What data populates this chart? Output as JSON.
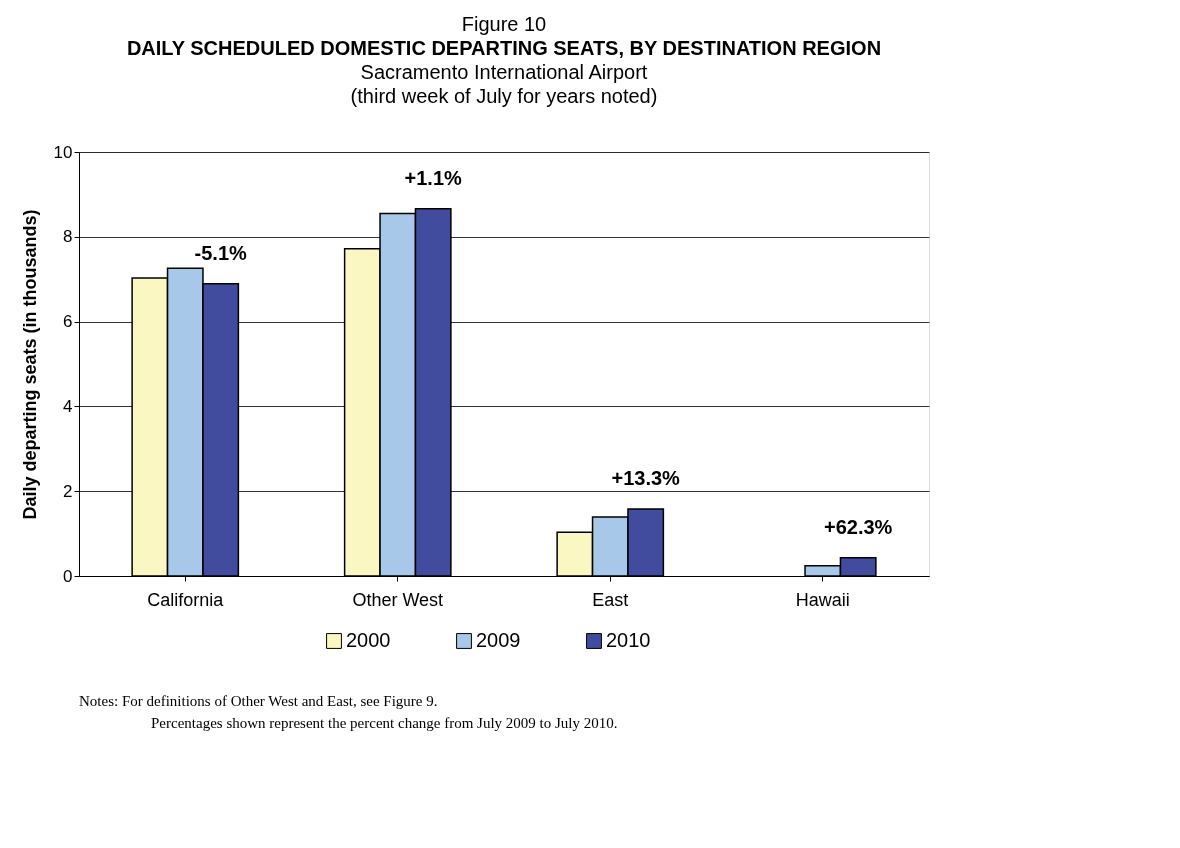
{
  "chart_data": {
    "type": "bar",
    "title": "DAILY SCHEDULED DOMESTIC DEPARTING SEATS, BY DESTINATION REGION",
    "subtitle": "Sacramento International Airport\n(third week of July for years noted)",
    "ylabel": "Daily departing seats (in thousands)",
    "categories": [
      "California",
      "Other West",
      "East",
      "Hawaii"
    ],
    "series": [
      {
        "name": "2000",
        "color": "#faf7c3",
        "values": [
          7.03,
          7.72,
          1.03,
          null
        ]
      },
      {
        "name": "2009",
        "color": "#a7c8e9",
        "values": [
          7.26,
          8.55,
          1.39,
          0.24
        ]
      },
      {
        "name": "2010",
        "color": "#424c9e",
        "values": [
          6.89,
          8.66,
          1.58,
          0.43
        ]
      }
    ],
    "ylim": [
      0,
      10
    ],
    "yticks": [
      0,
      2,
      4,
      6,
      8,
      10
    ],
    "grid": "y",
    "legend": "bottom",
    "annotations": [
      "Figure 10",
      "-5.1%",
      "+1.1%",
      "+13.3%",
      "+62.3%",
      "Notes:      For definitions of Other West and East, see Figure 9.",
      "Percentages shown represent the percent change from July 2009 to July 2010."
    ]
  }
}
